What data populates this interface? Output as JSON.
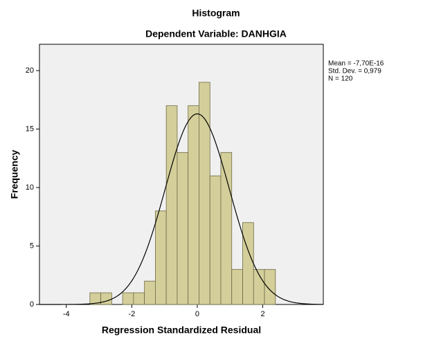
{
  "chart_data": {
    "type": "histogram",
    "title": "Histogram",
    "subtitle": "Dependent Variable: DANHGIA",
    "xlabel": "Regression Standardized Residual",
    "ylabel": "Frequency",
    "bins": [
      -3.28,
      -2.947,
      -2.613,
      -2.28,
      -1.947,
      -1.613,
      -1.28,
      -0.947,
      -0.613,
      -0.28,
      0.053,
      0.387,
      0.72,
      1.053,
      1.387,
      1.72,
      2.053,
      2.387
    ],
    "values": [
      1,
      1,
      0,
      1,
      1,
      2,
      8,
      17,
      13,
      17,
      19,
      11,
      13,
      3,
      7,
      3,
      3
    ],
    "color": "#d4cf9a",
    "xlim": [
      -4.82,
      3.85
    ],
    "ylim": [
      0,
      22.25
    ],
    "xticks": [
      -4,
      -2,
      0,
      2
    ],
    "yticks": [
      0,
      5,
      10,
      15,
      20
    ],
    "stats": {
      "mean": {
        "value": -7.7e-16,
        "label": "Mean = -7,70E-16"
      },
      "sd": {
        "value": 0.979,
        "label": "Std. Dev. = 0,979"
      },
      "n": {
        "value": 120,
        "label": "N = 120"
      }
    }
  }
}
